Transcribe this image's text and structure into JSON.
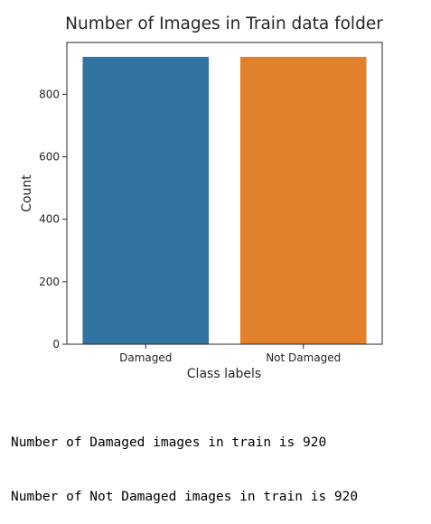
{
  "chart_data": {
    "type": "bar",
    "title": "Number of Images in Train data folder",
    "xlabel": "Class labels",
    "ylabel": "Count",
    "categories": [
      "Damaged",
      "Not Damaged"
    ],
    "values": [
      920,
      920
    ],
    "colors": [
      "#3274a1",
      "#e1812c"
    ],
    "ylim": [
      0,
      966
    ],
    "yticks": [
      0,
      200,
      400,
      600,
      800
    ],
    "grid": false,
    "legend": "none"
  },
  "output": {
    "lines": [
      "Number of Damaged images in train is 920",
      "Number of Not Damaged images in train is 920"
    ]
  }
}
